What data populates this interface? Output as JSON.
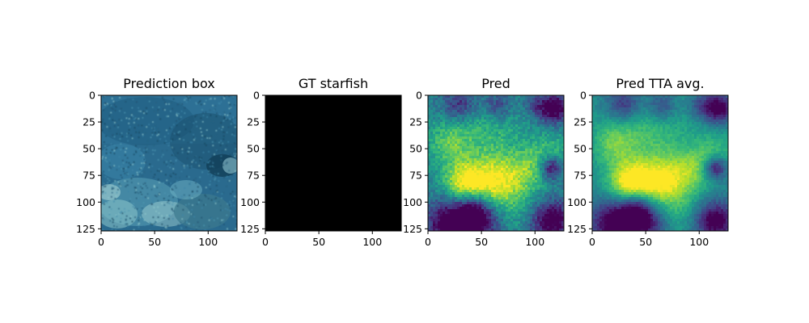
{
  "chart_data": [
    {
      "type": "image",
      "title": "Prediction box",
      "xticks": [
        0,
        50,
        100
      ],
      "yticks": [
        0,
        25,
        50,
        75,
        100,
        125
      ],
      "xlim": [
        0,
        127
      ],
      "ylim": [
        127,
        0
      ],
      "colors": {
        "base": "#2a6a8e",
        "dark": "#123e57",
        "light": "#6fb3c6",
        "reef": "#a8d6d4"
      }
    },
    {
      "type": "image",
      "title": "GT starfish",
      "xticks": [
        0,
        50,
        100
      ],
      "yticks": [
        0,
        25,
        50,
        75,
        100,
        125
      ],
      "xlim": [
        0,
        127
      ],
      "ylim": [
        127,
        0
      ],
      "colors": {
        "fill": "#000000"
      }
    },
    {
      "type": "heatmap",
      "title": "Pred",
      "colormap": "viridis",
      "xticks": [
        0,
        50,
        100
      ],
      "yticks": [
        0,
        25,
        50,
        75,
        100,
        125
      ],
      "xlim": [
        0,
        127
      ],
      "ylim": [
        127,
        0
      ]
    },
    {
      "type": "heatmap",
      "title": "Pred TTA avg.",
      "colormap": "viridis",
      "xticks": [
        0,
        50,
        100
      ],
      "yticks": [
        0,
        25,
        50,
        75,
        100,
        125
      ],
      "xlim": [
        0,
        127
      ],
      "ylim": [
        127,
        0
      ]
    }
  ]
}
